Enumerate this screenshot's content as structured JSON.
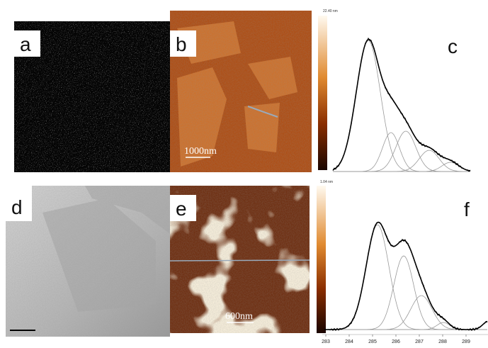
{
  "panels": [
    {
      "label": "a"
    },
    {
      "label": "b",
      "scale_bar": "1000nm",
      "color_bar_max": "22.40 nm"
    },
    {
      "label": "c"
    },
    {
      "label": "d"
    },
    {
      "label": "e",
      "scale_bar": "600nm",
      "color_bar_max": "1.04 nm"
    },
    {
      "label": "f",
      "x_ticks": [
        "283",
        "284",
        "285",
        "286",
        "287",
        "288",
        "289"
      ]
    }
  ]
}
